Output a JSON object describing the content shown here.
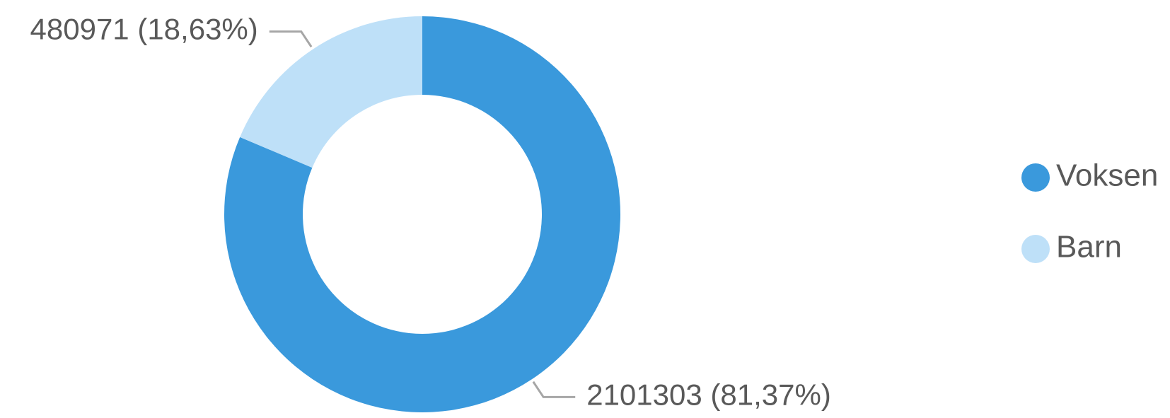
{
  "chart_data": {
    "type": "donut",
    "categories": [
      "Voksen",
      "Barn"
    ],
    "values": [
      2101303,
      480971
    ],
    "value_labels": [
      "2101303 (81,37%)",
      "480971 (18,63%)"
    ],
    "colors": [
      "#3a99dc",
      "#bee0f8"
    ],
    "legend": "right"
  }
}
